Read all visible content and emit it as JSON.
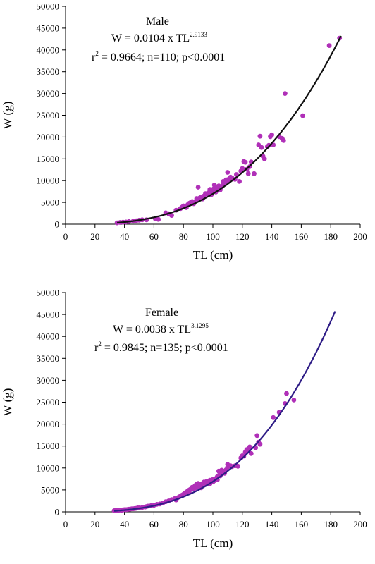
{
  "chart_data": [
    {
      "type": "scatter",
      "xlabel": "TL (cm)",
      "ylabel": "W (g)",
      "xlim": [
        0,
        200
      ],
      "ylim": [
        0,
        50000
      ],
      "x_ticks": [
        0,
        20,
        40,
        60,
        80,
        100,
        120,
        140,
        160,
        180,
        200
      ],
      "y_ticks": [
        0,
        5000,
        10000,
        15000,
        20000,
        25000,
        30000,
        35000,
        40000,
        45000,
        50000
      ],
      "grid": false,
      "annotation": {
        "title": "Male",
        "eq_prefix": "W = 0.0104 x TL",
        "eq_exponent": "2.9133",
        "stats_r": "r",
        "stats_sup": "2",
        "stats_rest": " = 0.9664; n=110; p<0.0001"
      },
      "fit": {
        "a": 0.0104,
        "b": 2.9133,
        "color": "#111111",
        "x_range": [
          35,
          187
        ]
      },
      "point_color": "#b030b8",
      "points": [
        [
          35,
          300
        ],
        [
          37,
          400
        ],
        [
          39,
          450
        ],
        [
          41,
          500
        ],
        [
          43,
          600
        ],
        [
          46,
          700
        ],
        [
          48,
          800
        ],
        [
          50,
          900
        ],
        [
          52,
          1000
        ],
        [
          55,
          1000
        ],
        [
          61,
          1200
        ],
        [
          62,
          1400
        ],
        [
          63,
          1100
        ],
        [
          68,
          2600
        ],
        [
          70,
          2400
        ],
        [
          72,
          2000
        ],
        [
          75,
          3200
        ],
        [
          78,
          3600
        ],
        [
          79,
          3900
        ],
        [
          80,
          4200
        ],
        [
          81,
          4000
        ],
        [
          82,
          3800
        ],
        [
          83,
          4500
        ],
        [
          84,
          4800
        ],
        [
          85,
          5000
        ],
        [
          86,
          5200
        ],
        [
          87,
          4700
        ],
        [
          88,
          5200
        ],
        [
          89,
          5900
        ],
        [
          90,
          8500
        ],
        [
          90,
          5600
        ],
        [
          91,
          6000
        ],
        [
          92,
          6200
        ],
        [
          93,
          5800
        ],
        [
          94,
          6500
        ],
        [
          95,
          7000
        ],
        [
          96,
          6900
        ],
        [
          97,
          7200
        ],
        [
          98,
          7500
        ],
        [
          98,
          8000
        ],
        [
          99,
          7800
        ],
        [
          99,
          6800
        ],
        [
          100,
          8000
        ],
        [
          100,
          7600
        ],
        [
          101,
          8300
        ],
        [
          101,
          9000
        ],
        [
          102,
          8600
        ],
        [
          102,
          7400
        ],
        [
          103,
          7800
        ],
        [
          103,
          8200
        ],
        [
          104,
          8800
        ],
        [
          104,
          8400
        ],
        [
          105,
          7900
        ],
        [
          106,
          8600
        ],
        [
          107,
          9000
        ],
        [
          107,
          9800
        ],
        [
          108,
          9400
        ],
        [
          109,
          10200
        ],
        [
          110,
          11900
        ],
        [
          110,
          9900
        ],
        [
          111,
          10400
        ],
        [
          112,
          10800
        ],
        [
          113,
          10600
        ],
        [
          115,
          10300
        ],
        [
          116,
          11400
        ],
        [
          118,
          9800
        ],
        [
          119,
          12200
        ],
        [
          120,
          12800
        ],
        [
          121,
          14400
        ],
        [
          122,
          14200
        ],
        [
          123,
          12600
        ],
        [
          124,
          11600
        ],
        [
          125,
          13200
        ],
        [
          126,
          14300
        ],
        [
          128,
          11600
        ],
        [
          131,
          18200
        ],
        [
          132,
          20200
        ],
        [
          133,
          17600
        ],
        [
          134,
          15600
        ],
        [
          135,
          15000
        ],
        [
          137,
          17800
        ],
        [
          138,
          18100
        ],
        [
          139,
          20100
        ],
        [
          140,
          20500
        ],
        [
          141,
          18200
        ],
        [
          145,
          20100
        ],
        [
          147,
          19700
        ],
        [
          148,
          19200
        ],
        [
          149,
          30000
        ],
        [
          161,
          24900
        ],
        [
          179,
          41000
        ],
        [
          186,
          42700
        ]
      ]
    },
    {
      "type": "scatter",
      "xlabel": "TL (cm)",
      "ylabel": "W (g)",
      "xlim": [
        0,
        200
      ],
      "ylim": [
        0,
        50000
      ],
      "x_ticks": [
        0,
        20,
        40,
        60,
        80,
        100,
        120,
        140,
        160,
        180,
        200
      ],
      "y_ticks": [
        0,
        5000,
        10000,
        15000,
        20000,
        25000,
        30000,
        35000,
        40000,
        45000,
        50000
      ],
      "grid": false,
      "annotation": {
        "title": "Female",
        "eq_prefix": "W = 0.0038 x TL",
        "eq_exponent": "3.1295",
        "stats_r": "r",
        "stats_sup": "2",
        "stats_rest": " = 0.9845; n=135; p<0.0001"
      },
      "fit": {
        "a": 0.0038,
        "b": 3.1295,
        "color": "#2e1c86",
        "x_range": [
          33,
          183
        ]
      },
      "point_color": "#b030b8",
      "points": [
        [
          33,
          250
        ],
        [
          34,
          300
        ],
        [
          35,
          300
        ],
        [
          36,
          350
        ],
        [
          37,
          400
        ],
        [
          38,
          350
        ],
        [
          39,
          450
        ],
        [
          40,
          500
        ],
        [
          41,
          500
        ],
        [
          42,
          550
        ],
        [
          43,
          600
        ],
        [
          44,
          650
        ],
        [
          45,
          700
        ],
        [
          46,
          700
        ],
        [
          47,
          750
        ],
        [
          48,
          800
        ],
        [
          49,
          900
        ],
        [
          50,
          900
        ],
        [
          52,
          1000
        ],
        [
          54,
          1100
        ],
        [
          55,
          1200
        ],
        [
          56,
          1300
        ],
        [
          58,
          1400
        ],
        [
          60,
          1500
        ],
        [
          62,
          1700
        ],
        [
          64,
          1800
        ],
        [
          66,
          2000
        ],
        [
          68,
          2300
        ],
        [
          70,
          2500
        ],
        [
          72,
          2800
        ],
        [
          74,
          3000
        ],
        [
          75,
          2700
        ],
        [
          76,
          3200
        ],
        [
          77,
          3400
        ],
        [
          78,
          3600
        ],
        [
          79,
          3800
        ],
        [
          80,
          4000
        ],
        [
          81,
          4300
        ],
        [
          82,
          4500
        ],
        [
          83,
          4800
        ],
        [
          84,
          5000
        ],
        [
          84,
          4400
        ],
        [
          85,
          5200
        ],
        [
          86,
          5600
        ],
        [
          87,
          5300
        ],
        [
          88,
          6000
        ],
        [
          88,
          5400
        ],
        [
          89,
          6300
        ],
        [
          90,
          5800
        ],
        [
          90,
          6500
        ],
        [
          91,
          6000
        ],
        [
          92,
          6300
        ],
        [
          92,
          5500
        ],
        [
          93,
          6500
        ],
        [
          94,
          6800
        ],
        [
          95,
          6200
        ],
        [
          96,
          7000
        ],
        [
          96,
          6600
        ],
        [
          97,
          6500
        ],
        [
          98,
          7200
        ],
        [
          98,
          6400
        ],
        [
          99,
          7000
        ],
        [
          100,
          7400
        ],
        [
          100,
          6800
        ],
        [
          101,
          7100
        ],
        [
          102,
          7600
        ],
        [
          103,
          8000
        ],
        [
          103,
          7300
        ],
        [
          104,
          8300
        ],
        [
          104,
          9300
        ],
        [
          105,
          8200
        ],
        [
          106,
          8700
        ],
        [
          106,
          9500
        ],
        [
          107,
          9300
        ],
        [
          108,
          8800
        ],
        [
          109,
          9600
        ],
        [
          110,
          10200
        ],
        [
          110,
          10800
        ],
        [
          112,
          10500
        ],
        [
          113,
          10300
        ],
        [
          115,
          10500
        ],
        [
          117,
          10400
        ],
        [
          119,
          12300
        ],
        [
          120,
          12800
        ],
        [
          121,
          12700
        ],
        [
          122,
          13600
        ],
        [
          123,
          14200
        ],
        [
          124,
          14000
        ],
        [
          125,
          14800
        ],
        [
          126,
          13300
        ],
        [
          129,
          14600
        ],
        [
          130,
          17400
        ],
        [
          131,
          15900
        ],
        [
          132,
          15400
        ],
        [
          141,
          21500
        ],
        [
          145,
          22700
        ],
        [
          149,
          24700
        ],
        [
          150,
          27000
        ],
        [
          155,
          25500
        ]
      ]
    }
  ]
}
